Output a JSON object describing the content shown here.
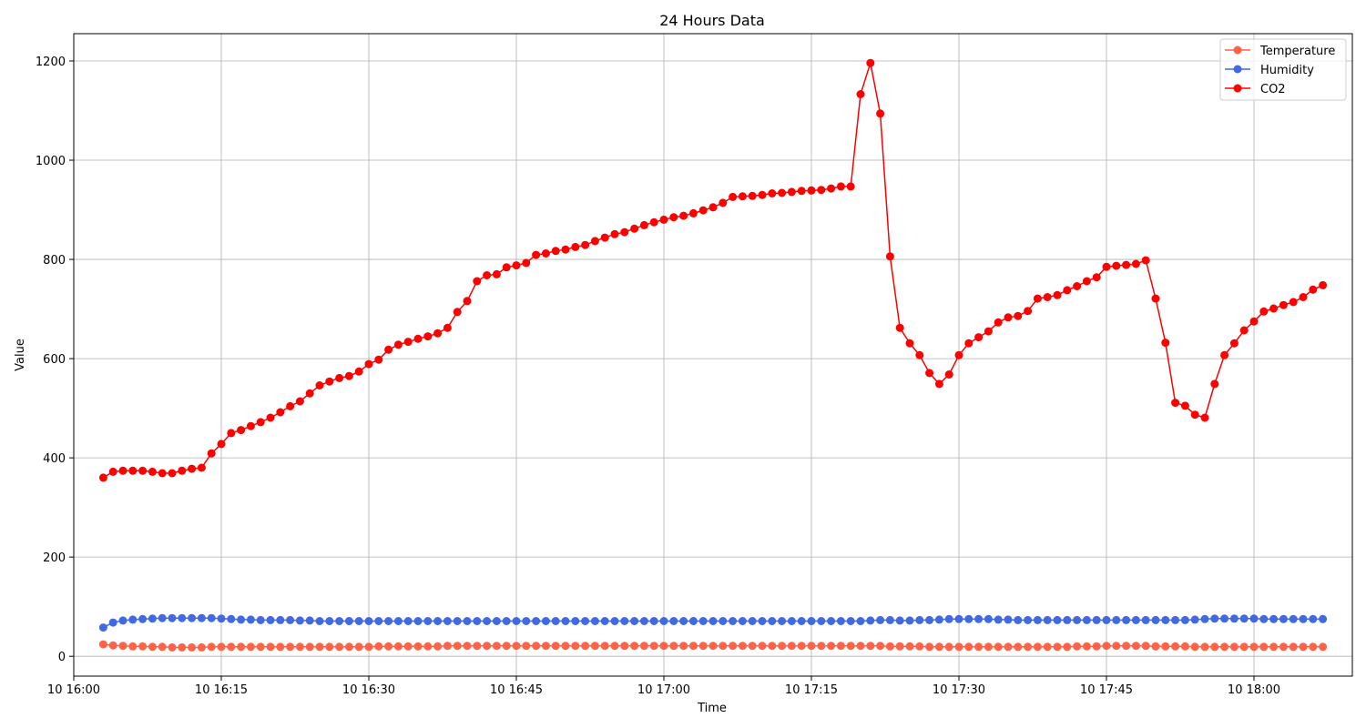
{
  "chart_data": {
    "type": "line",
    "title": "24 Hours Data",
    "xlabel": "Time",
    "ylabel": "Value",
    "x_axis": "time",
    "xlim": [
      "10 16:00",
      "10 18:10"
    ],
    "ylim": [
      -40,
      1255
    ],
    "x_tick_labels": [
      "10 16:00",
      "10 16:15",
      "10 16:30",
      "10 16:45",
      "10 17:00",
      "10 17:15",
      "10 17:30",
      "10 17:45",
      "10 18:00"
    ],
    "y_ticks": [
      0,
      200,
      400,
      600,
      800,
      1000,
      1200
    ],
    "grid": true,
    "legend_position": "top-right",
    "x": [
      "16:03",
      "16:04",
      "16:05",
      "16:06",
      "16:07",
      "16:08",
      "16:09",
      "16:10",
      "16:11",
      "16:12",
      "16:13",
      "16:14",
      "16:15",
      "16:16",
      "16:17",
      "16:18",
      "16:19",
      "16:20",
      "16:21",
      "16:22",
      "16:23",
      "16:24",
      "16:25",
      "16:26",
      "16:27",
      "16:28",
      "16:29",
      "16:30",
      "16:31",
      "16:32",
      "16:33",
      "16:34",
      "16:35",
      "16:36",
      "16:37",
      "16:38",
      "16:39",
      "16:40",
      "16:41",
      "16:42",
      "16:43",
      "16:44",
      "16:45",
      "16:46",
      "16:47",
      "16:48",
      "16:49",
      "16:50",
      "16:51",
      "16:52",
      "16:53",
      "16:54",
      "16:55",
      "16:56",
      "16:57",
      "16:58",
      "16:59",
      "17:00",
      "17:01",
      "17:02",
      "17:03",
      "17:04",
      "17:05",
      "17:06",
      "17:07",
      "17:08",
      "17:09",
      "17:10",
      "17:11",
      "17:12",
      "17:13",
      "17:14",
      "17:15",
      "17:16",
      "17:17",
      "17:18",
      "17:19",
      "17:20",
      "17:21",
      "17:22",
      "17:23",
      "17:24",
      "17:25",
      "17:26",
      "17:27",
      "17:28",
      "17:29",
      "17:30",
      "17:31",
      "17:32",
      "17:33",
      "17:34",
      "17:35",
      "17:36",
      "17:37",
      "17:38",
      "17:39",
      "17:40",
      "17:41",
      "17:42",
      "17:43",
      "17:44",
      "17:45",
      "17:46",
      "17:47",
      "17:48",
      "17:49",
      "17:50",
      "17:51",
      "17:52",
      "17:53",
      "17:54",
      "17:55",
      "17:56",
      "17:57",
      "17:58",
      "17:59",
      "18:00",
      "18:01",
      "18:02",
      "18:03",
      "18:04",
      "18:05",
      "18:06",
      "18:07"
    ],
    "series": [
      {
        "name": "Temperature",
        "color": "#ff6347",
        "values": [
          24,
          22,
          21,
          20,
          20,
          19,
          19,
          18,
          18,
          18,
          18,
          19,
          19,
          19,
          19,
          19,
          19,
          19,
          19,
          19,
          19,
          19,
          19,
          19,
          19,
          19,
          19,
          19,
          20,
          20,
          20,
          20,
          20,
          20,
          20,
          21,
          21,
          21,
          21,
          21,
          21,
          21,
          21,
          21,
          21,
          21,
          21,
          21,
          21,
          21,
          21,
          21,
          21,
          21,
          21,
          21,
          21,
          21,
          21,
          21,
          21,
          21,
          21,
          21,
          21,
          21,
          21,
          21,
          21,
          21,
          21,
          21,
          21,
          21,
          21,
          21,
          21,
          21,
          21,
          21,
          20,
          20,
          20,
          20,
          19,
          19,
          19,
          19,
          19,
          19,
          19,
          19,
          19,
          19,
          19,
          19,
          19,
          19,
          19,
          20,
          20,
          20,
          21,
          21,
          21,
          21,
          21,
          20,
          20,
          20,
          20,
          19,
          19,
          19,
          19,
          19,
          19,
          19,
          19,
          19,
          19,
          19,
          19,
          19,
          19
        ]
      },
      {
        "name": "Humidity",
        "color": "#4169e1",
        "values": [
          58,
          68,
          72,
          74,
          75,
          76,
          77,
          77,
          77,
          77,
          77,
          77,
          76,
          75,
          74,
          74,
          73,
          73,
          73,
          73,
          72,
          72,
          71,
          71,
          71,
          71,
          71,
          71,
          71,
          71,
          71,
          71,
          71,
          71,
          71,
          71,
          71,
          71,
          71,
          71,
          71,
          71,
          71,
          71,
          71,
          71,
          71,
          71,
          71,
          71,
          71,
          71,
          71,
          71,
          71,
          71,
          71,
          71,
          71,
          71,
          71,
          71,
          71,
          71,
          71,
          71,
          71,
          71,
          71,
          71,
          71,
          71,
          71,
          71,
          71,
          71,
          71,
          71,
          72,
          73,
          73,
          72,
          72,
          73,
          73,
          74,
          75,
          75,
          75,
          75,
          75,
          74,
          74,
          73,
          73,
          73,
          73,
          73,
          73,
          73,
          73,
          73,
          73,
          73,
          73,
          73,
          73,
          73,
          73,
          73,
          73,
          74,
          75,
          76,
          76,
          76,
          76,
          76,
          75,
          75,
          75,
          75,
          75,
          75,
          75
        ]
      },
      {
        "name": "CO2",
        "color": "#ff0000",
        "values": [
          360,
          372,
          374,
          374,
          374,
          372,
          369,
          369,
          374,
          378,
          380,
          409,
          428,
          450,
          456,
          464,
          472,
          481,
          492,
          504,
          514,
          530,
          546,
          554,
          561,
          565,
          574,
          589,
          598,
          618,
          628,
          634,
          640,
          645,
          651,
          662,
          694,
          716,
          756,
          768,
          770,
          784,
          788,
          793,
          809,
          812,
          817,
          820,
          825,
          829,
          837,
          844,
          851,
          855,
          862,
          869,
          875,
          880,
          885,
          888,
          893,
          899,
          905,
          914,
          926,
          927,
          928,
          930,
          933,
          934,
          936,
          938,
          939,
          940,
          943,
          947,
          947,
          1133,
          1196,
          1094,
          806,
          662,
          631,
          607,
          571,
          549,
          568,
          607,
          631,
          643,
          655,
          673,
          683,
          686,
          696,
          721,
          724,
          728,
          738,
          746,
          756,
          764,
          785,
          787,
          789,
          791,
          798,
          721,
          632,
          511,
          505,
          487,
          481,
          549,
          607,
          631,
          657,
          675,
          695,
          701,
          708,
          714,
          724,
          739,
          748
        ]
      }
    ]
  }
}
